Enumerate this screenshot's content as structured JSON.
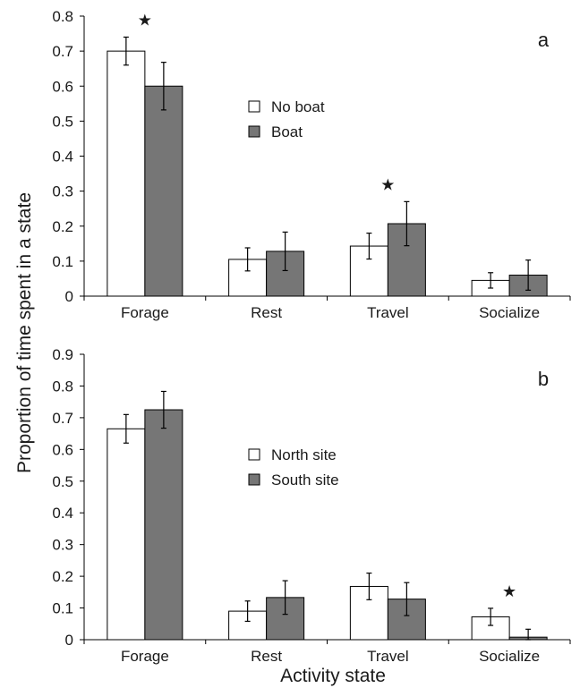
{
  "colors": {
    "series_1": "#ffffff",
    "series_2": "#767676",
    "outline": "#000000"
  },
  "common": {
    "ylabel": "Proportion of time spent in a state",
    "xlabel": "Activity state"
  },
  "chart_data": [
    {
      "type": "bar",
      "panel": "a",
      "categories": [
        "Forage",
        "Rest",
        "Travel",
        "Socialize"
      ],
      "series": [
        {
          "name": "No boat",
          "values": [
            0.7,
            0.105,
            0.143,
            0.045
          ],
          "errors": [
            0.04,
            0.033,
            0.037,
            0.022
          ]
        },
        {
          "name": "Boat",
          "values": [
            0.6,
            0.128,
            0.207,
            0.06
          ],
          "errors": [
            0.068,
            0.055,
            0.063,
            0.043
          ]
        }
      ],
      "significant": [
        true,
        false,
        true,
        false
      ],
      "significance_marker": "★",
      "ylim": [
        0,
        0.8
      ],
      "yticks": [
        "0",
        "0.1",
        "0.2",
        "0.3",
        "0.4",
        "0.5",
        "0.6",
        "0.7",
        "0.8"
      ],
      "legend_position": "center",
      "grid": false
    },
    {
      "type": "bar",
      "panel": "b",
      "categories": [
        "Forage",
        "Rest",
        "Travel",
        "Socialize"
      ],
      "series": [
        {
          "name": "North site",
          "values": [
            0.665,
            0.09,
            0.168,
            0.072
          ],
          "errors": [
            0.045,
            0.032,
            0.042,
            0.027
          ]
        },
        {
          "name": "South site",
          "values": [
            0.725,
            0.133,
            0.128,
            0.008
          ],
          "errors": [
            0.058,
            0.053,
            0.052,
            0.025
          ]
        }
      ],
      "significant": [
        false,
        false,
        false,
        true
      ],
      "significance_marker": "★",
      "ylim": [
        0,
        0.9
      ],
      "yticks": [
        "0",
        "0.1",
        "0.2",
        "0.3",
        "0.4",
        "0.5",
        "0.6",
        "0.7",
        "0.8",
        "0.9"
      ],
      "legend_position": "center",
      "grid": false
    }
  ]
}
